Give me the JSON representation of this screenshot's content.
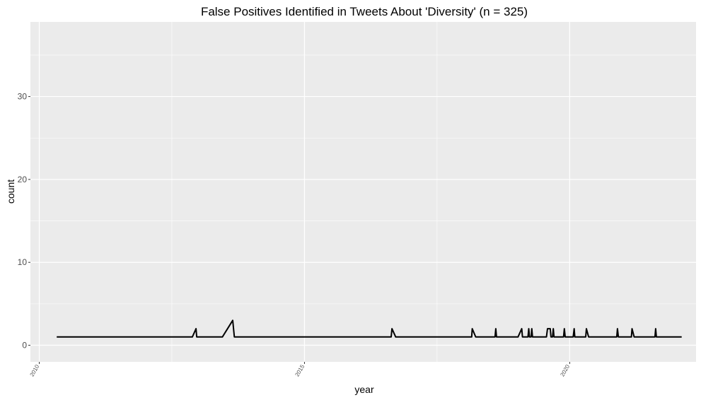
{
  "chart_data": {
    "type": "line",
    "title": "False Positives Identified in Tweets About 'Diversity' (n = 325)",
    "xlabel": "year",
    "ylabel": "count",
    "x_ticks": [
      "2010",
      "2015",
      "2020"
    ],
    "y_ticks": [
      "0",
      "10",
      "20",
      "30"
    ],
    "xlim": [
      "2009-11-01",
      "2022-05-20"
    ],
    "ylim": [
      -2,
      39
    ],
    "grid": true,
    "series": [
      {
        "points": [
          [
            "2010-05-01",
            1
          ],
          [
            "2012-11-20",
            1
          ],
          [
            "2012-12-15",
            2
          ],
          [
            "2012-12-20",
            1
          ],
          [
            "2013-06-15",
            1
          ],
          [
            "2013-08-25",
            3
          ],
          [
            "2013-09-05",
            1
          ],
          [
            "2016-08-20",
            1
          ],
          [
            "2016-08-25",
            2
          ],
          [
            "2016-09-20",
            1
          ],
          [
            "2018-02-25",
            1
          ],
          [
            "2018-03-01",
            2
          ],
          [
            "2018-03-25",
            1
          ],
          [
            "2018-08-05",
            1
          ],
          [
            "2018-08-10",
            2
          ],
          [
            "2018-08-15",
            1
          ],
          [
            "2019-01-10",
            1
          ],
          [
            "2019-02-05",
            2
          ],
          [
            "2019-02-10",
            1
          ],
          [
            "2019-03-20",
            1
          ],
          [
            "2019-03-25",
            2
          ],
          [
            "2019-03-30",
            1
          ],
          [
            "2019-04-10",
            1
          ],
          [
            "2019-04-15",
            2
          ],
          [
            "2019-04-20",
            1
          ],
          [
            "2019-07-25",
            1
          ],
          [
            "2019-08-01",
            2
          ],
          [
            "2019-08-20",
            2
          ],
          [
            "2019-08-25",
            1
          ],
          [
            "2019-09-05",
            1
          ],
          [
            "2019-09-10",
            2
          ],
          [
            "2019-09-15",
            1
          ],
          [
            "2019-11-20",
            1
          ],
          [
            "2019-11-25",
            2
          ],
          [
            "2019-12-01",
            1
          ],
          [
            "2020-01-25",
            1
          ],
          [
            "2020-02-01",
            2
          ],
          [
            "2020-02-05",
            1
          ],
          [
            "2020-04-20",
            1
          ],
          [
            "2020-04-25",
            2
          ],
          [
            "2020-05-10",
            1
          ],
          [
            "2020-11-20",
            1
          ],
          [
            "2020-11-25",
            2
          ],
          [
            "2020-12-01",
            1
          ],
          [
            "2021-03-01",
            1
          ],
          [
            "2021-03-05",
            2
          ],
          [
            "2021-03-20",
            1
          ],
          [
            "2021-08-10",
            1
          ],
          [
            "2021-08-15",
            2
          ],
          [
            "2021-08-20",
            1
          ],
          [
            "2022-02-10",
            1
          ]
        ]
      }
    ]
  }
}
